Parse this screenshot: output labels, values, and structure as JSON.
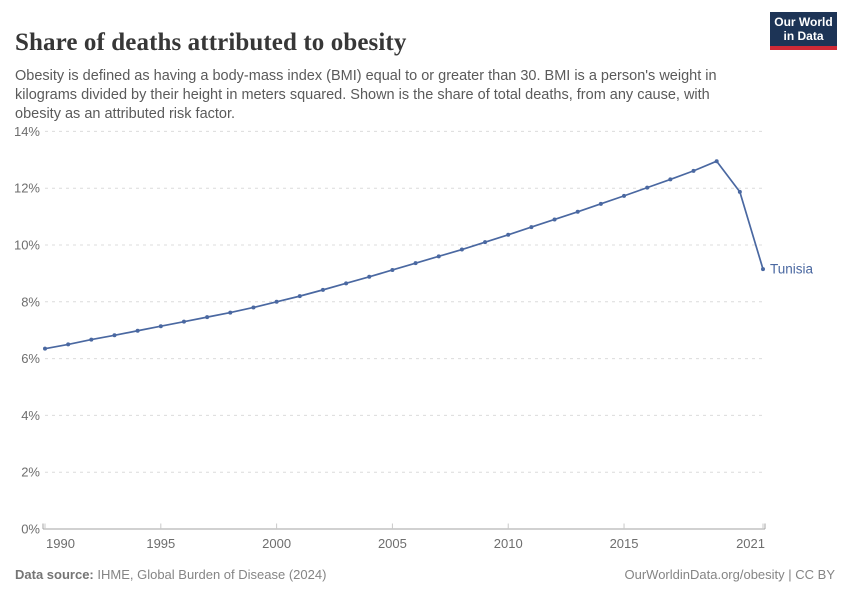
{
  "header": {
    "title": "Share of deaths attributed to obesity",
    "subtitle": "Obesity is defined as having a body-mass index (BMI) equal to or greater than 30. BMI is a person's weight in kilograms divided by their height in meters squared. Shown is the share of total deaths, from any cause, with obesity as an attributed risk factor.",
    "logo": {
      "line1": "Our World",
      "line2": "in Data",
      "bg_color": "#1d3456",
      "stripe_color": "#cf2a36"
    }
  },
  "chart_data": {
    "type": "line",
    "title": "Share of deaths attributed to obesity",
    "xlabel": "",
    "ylabel": "",
    "unit": "%",
    "ylim": [
      0,
      14
    ],
    "y_ticks": [
      0,
      2,
      4,
      6,
      8,
      10,
      12,
      14
    ],
    "x_ticks": [
      1990,
      1995,
      2000,
      2005,
      2010,
      2015,
      2021
    ],
    "grid": "horizontal-dashed",
    "legend_position": "end-of-line-label",
    "x": [
      1990,
      1991,
      1992,
      1993,
      1994,
      1995,
      1996,
      1997,
      1998,
      1999,
      2000,
      2001,
      2002,
      2003,
      2004,
      2005,
      2006,
      2007,
      2008,
      2009,
      2010,
      2011,
      2012,
      2013,
      2014,
      2015,
      2016,
      2017,
      2018,
      2019,
      2020,
      2021
    ],
    "series": [
      {
        "name": "Tunisia",
        "color": "#4a68a1",
        "values": [
          6.35,
          6.5,
          6.67,
          6.82,
          6.98,
          7.14,
          7.3,
          7.46,
          7.62,
          7.8,
          8.0,
          8.2,
          8.42,
          8.65,
          8.88,
          9.12,
          9.36,
          9.6,
          9.84,
          10.1,
          10.36,
          10.63,
          10.9,
          11.17,
          11.45,
          11.73,
          12.02,
          12.31,
          12.61,
          12.95,
          11.87,
          9.15
        ]
      }
    ],
    "theme": {
      "grid_color": "#dcdcdc",
      "axis_line_color": "#a3a3a3",
      "tick_color": "#c9c9c9",
      "tick_label_color": "#6e6e6e"
    }
  },
  "footer": {
    "datasource_label": "Data source:",
    "datasource_value": " IHME, Global Burden of Disease (2024)",
    "license": "OurWorldinData.org/obesity | CC BY"
  }
}
